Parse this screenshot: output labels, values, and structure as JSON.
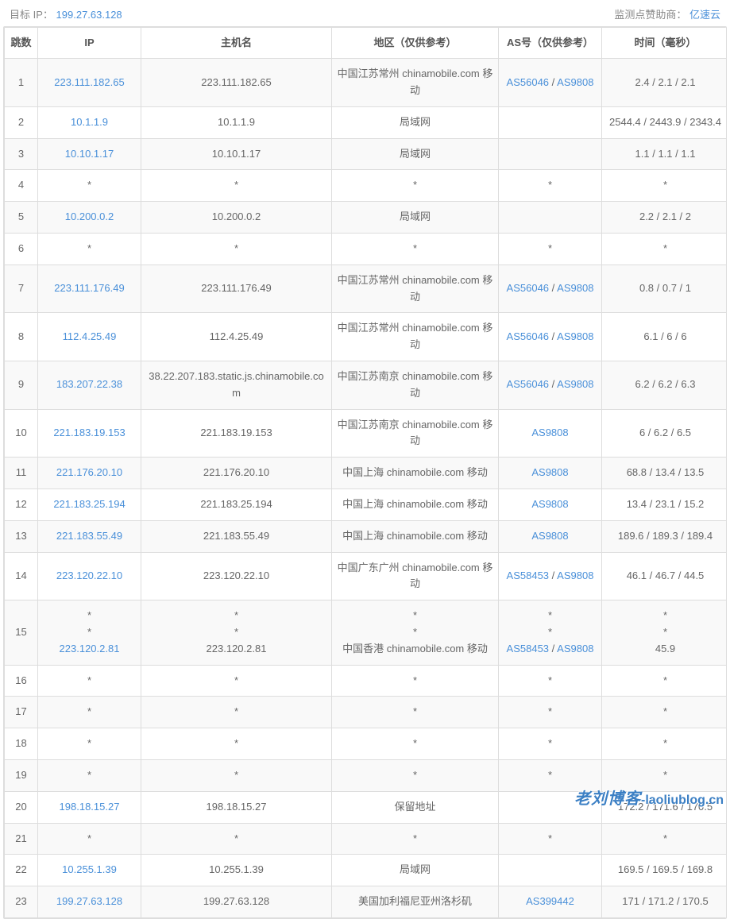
{
  "header": {
    "target_label": "目标 IP：",
    "target_ip": "199.27.63.128",
    "sponsor_label": "监测点赞助商：",
    "sponsor_name": "亿速云"
  },
  "columns": {
    "hop": "跳数",
    "ip": "IP",
    "host": "主机名",
    "region": "地区（仅供参考）",
    "as": "AS号（仅供参考）",
    "time": "时间（毫秒）"
  },
  "rows": [
    {
      "hop": "1",
      "ip": [
        {
          "text": "223.111.182.65",
          "link": true
        }
      ],
      "host": [
        {
          "text": "223.111.182.65"
        }
      ],
      "region": [
        {
          "text": "中国江苏常州 chinamobile.com 移动"
        }
      ],
      "as": [
        {
          "text": "AS56046",
          "link": true
        },
        {
          "text": " / "
        },
        {
          "text": "AS9808",
          "link": true
        }
      ],
      "time": [
        {
          "text": "2.4 / 2.1 / 2.1"
        }
      ]
    },
    {
      "hop": "2",
      "ip": [
        {
          "text": "10.1.1.9",
          "link": true
        }
      ],
      "host": [
        {
          "text": "10.1.1.9"
        }
      ],
      "region": [
        {
          "text": "局域网"
        }
      ],
      "as": [],
      "time": [
        {
          "text": "2544.4 / 2443.9 / 2343.4"
        }
      ]
    },
    {
      "hop": "3",
      "ip": [
        {
          "text": "10.10.1.17",
          "link": true
        }
      ],
      "host": [
        {
          "text": "10.10.1.17"
        }
      ],
      "region": [
        {
          "text": "局域网"
        }
      ],
      "as": [],
      "time": [
        {
          "text": "1.1 / 1.1 / 1.1"
        }
      ]
    },
    {
      "hop": "4",
      "ip": [
        {
          "text": "*"
        }
      ],
      "host": [
        {
          "text": "*"
        }
      ],
      "region": [
        {
          "text": "*"
        }
      ],
      "as": [
        {
          "text": "*"
        }
      ],
      "time": [
        {
          "text": "*"
        }
      ]
    },
    {
      "hop": "5",
      "ip": [
        {
          "text": "10.200.0.2",
          "link": true
        }
      ],
      "host": [
        {
          "text": "10.200.0.2"
        }
      ],
      "region": [
        {
          "text": "局域网"
        }
      ],
      "as": [],
      "time": [
        {
          "text": "2.2 / 2.1 / 2"
        }
      ]
    },
    {
      "hop": "6",
      "ip": [
        {
          "text": "*"
        }
      ],
      "host": [
        {
          "text": "*"
        }
      ],
      "region": [
        {
          "text": "*"
        }
      ],
      "as": [
        {
          "text": "*"
        }
      ],
      "time": [
        {
          "text": "*"
        }
      ]
    },
    {
      "hop": "7",
      "ip": [
        {
          "text": "223.111.176.49",
          "link": true
        }
      ],
      "host": [
        {
          "text": "223.111.176.49"
        }
      ],
      "region": [
        {
          "text": "中国江苏常州 chinamobile.com 移动"
        }
      ],
      "as": [
        {
          "text": "AS56046",
          "link": true
        },
        {
          "text": " / "
        },
        {
          "text": "AS9808",
          "link": true
        }
      ],
      "time": [
        {
          "text": "0.8 / 0.7 / 1"
        }
      ]
    },
    {
      "hop": "8",
      "ip": [
        {
          "text": "112.4.25.49",
          "link": true
        }
      ],
      "host": [
        {
          "text": "112.4.25.49"
        }
      ],
      "region": [
        {
          "text": "中国江苏常州 chinamobile.com 移动"
        }
      ],
      "as": [
        {
          "text": "AS56046",
          "link": true
        },
        {
          "text": " / "
        },
        {
          "text": "AS9808",
          "link": true
        }
      ],
      "time": [
        {
          "text": "6.1 / 6 / 6"
        }
      ]
    },
    {
      "hop": "9",
      "ip": [
        {
          "text": "183.207.22.38",
          "link": true
        }
      ],
      "host": [
        {
          "text": "38.22.207.183.static.js.chinamobile.com"
        }
      ],
      "region": [
        {
          "text": "中国江苏南京 chinamobile.com 移动"
        }
      ],
      "as": [
        {
          "text": "AS56046",
          "link": true
        },
        {
          "text": " / "
        },
        {
          "text": "AS9808",
          "link": true
        }
      ],
      "time": [
        {
          "text": "6.2 / 6.2 / 6.3"
        }
      ]
    },
    {
      "hop": "10",
      "ip": [
        {
          "text": "221.183.19.153",
          "link": true
        }
      ],
      "host": [
        {
          "text": "221.183.19.153"
        }
      ],
      "region": [
        {
          "text": "中国江苏南京 chinamobile.com 移动"
        }
      ],
      "as": [
        {
          "text": "AS9808",
          "link": true
        }
      ],
      "time": [
        {
          "text": "6 / 6.2 / 6.5"
        }
      ]
    },
    {
      "hop": "11",
      "ip": [
        {
          "text": "221.176.20.10",
          "link": true
        }
      ],
      "host": [
        {
          "text": "221.176.20.10"
        }
      ],
      "region": [
        {
          "text": "中国上海 chinamobile.com 移动"
        }
      ],
      "as": [
        {
          "text": "AS9808",
          "link": true
        }
      ],
      "time": [
        {
          "text": "68.8 / 13.4 / 13.5"
        }
      ]
    },
    {
      "hop": "12",
      "ip": [
        {
          "text": "221.183.25.194",
          "link": true
        }
      ],
      "host": [
        {
          "text": "221.183.25.194"
        }
      ],
      "region": [
        {
          "text": "中国上海 chinamobile.com 移动"
        }
      ],
      "as": [
        {
          "text": "AS9808",
          "link": true
        }
      ],
      "time": [
        {
          "text": "13.4 / 23.1 / 15.2"
        }
      ]
    },
    {
      "hop": "13",
      "ip": [
        {
          "text": "221.183.55.49",
          "link": true
        }
      ],
      "host": [
        {
          "text": "221.183.55.49"
        }
      ],
      "region": [
        {
          "text": "中国上海 chinamobile.com 移动"
        }
      ],
      "as": [
        {
          "text": "AS9808",
          "link": true
        }
      ],
      "time": [
        {
          "text": "189.6 / 189.3 / 189.4"
        }
      ]
    },
    {
      "hop": "14",
      "ip": [
        {
          "text": "223.120.22.10",
          "link": true
        }
      ],
      "host": [
        {
          "text": "223.120.22.10"
        }
      ],
      "region": [
        {
          "text": "中国广东广州 chinamobile.com 移动"
        }
      ],
      "as": [
        {
          "text": "AS58453",
          "link": true
        },
        {
          "text": " / "
        },
        {
          "text": "AS9808",
          "link": true
        }
      ],
      "time": [
        {
          "text": "46.1 / 46.7 / 44.5"
        }
      ]
    },
    {
      "hop": "15",
      "ip": [
        {
          "text": "*",
          "block": true
        },
        {
          "text": "*",
          "block": true
        },
        {
          "text": "223.120.2.81",
          "link": true,
          "block": true
        }
      ],
      "host": [
        {
          "text": "*",
          "block": true
        },
        {
          "text": "*",
          "block": true
        },
        {
          "text": "223.120.2.81",
          "block": true
        }
      ],
      "region": [
        {
          "text": "*",
          "block": true
        },
        {
          "text": "*",
          "block": true
        },
        {
          "text": "中国香港 chinamobile.com 移动",
          "block": true
        }
      ],
      "as": [
        {
          "text": "*",
          "block": true
        },
        {
          "text": "*",
          "block": true
        },
        {
          "html": true,
          "parts": [
            {
              "text": "AS58453",
              "link": true
            },
            {
              "text": " / "
            },
            {
              "text": "AS9808",
              "link": true
            }
          ],
          "block": true
        }
      ],
      "time": [
        {
          "text": "*",
          "block": true
        },
        {
          "text": "*",
          "block": true
        },
        {
          "text": "45.9",
          "block": true
        }
      ]
    },
    {
      "hop": "16",
      "ip": [
        {
          "text": "*"
        }
      ],
      "host": [
        {
          "text": "*"
        }
      ],
      "region": [
        {
          "text": "*"
        }
      ],
      "as": [
        {
          "text": "*"
        }
      ],
      "time": [
        {
          "text": "*"
        }
      ]
    },
    {
      "hop": "17",
      "ip": [
        {
          "text": "*"
        }
      ],
      "host": [
        {
          "text": "*"
        }
      ],
      "region": [
        {
          "text": "*"
        }
      ],
      "as": [
        {
          "text": "*"
        }
      ],
      "time": [
        {
          "text": "*"
        }
      ]
    },
    {
      "hop": "18",
      "ip": [
        {
          "text": "*"
        }
      ],
      "host": [
        {
          "text": "*"
        }
      ],
      "region": [
        {
          "text": "*"
        }
      ],
      "as": [
        {
          "text": "*"
        }
      ],
      "time": [
        {
          "text": "*"
        }
      ]
    },
    {
      "hop": "19",
      "ip": [
        {
          "text": "*"
        }
      ],
      "host": [
        {
          "text": "*"
        }
      ],
      "region": [
        {
          "text": "*"
        }
      ],
      "as": [
        {
          "text": "*"
        }
      ],
      "time": [
        {
          "text": "*"
        }
      ]
    },
    {
      "hop": "20",
      "ip": [
        {
          "text": "198.18.15.27",
          "link": true
        }
      ],
      "host": [
        {
          "text": "198.18.15.27"
        }
      ],
      "region": [
        {
          "text": "保留地址"
        }
      ],
      "as": [],
      "time": [
        {
          "text": "172.2 / 171.6 / 170.5"
        }
      ]
    },
    {
      "hop": "21",
      "ip": [
        {
          "text": "*"
        }
      ],
      "host": [
        {
          "text": "*"
        }
      ],
      "region": [
        {
          "text": "*"
        }
      ],
      "as": [
        {
          "text": "*"
        }
      ],
      "time": [
        {
          "text": "*"
        }
      ]
    },
    {
      "hop": "22",
      "ip": [
        {
          "text": "10.255.1.39",
          "link": true
        }
      ],
      "host": [
        {
          "text": "10.255.1.39"
        }
      ],
      "region": [
        {
          "text": "局域网"
        }
      ],
      "as": [],
      "time": [
        {
          "text": "169.5 / 169.5 / 169.8"
        }
      ]
    },
    {
      "hop": "23",
      "ip": [
        {
          "text": "199.27.63.128",
          "link": true
        }
      ],
      "host": [
        {
          "text": "199.27.63.128"
        }
      ],
      "region": [
        {
          "text": "美国加利福尼亚州洛杉矶"
        }
      ],
      "as": [
        {
          "text": "AS399442",
          "link": true
        }
      ],
      "time": [
        {
          "text": "171 / 171.2 / 170.5"
        }
      ]
    }
  ],
  "watermark": {
    "line1": "老刘博客",
    "line2": "-laoliublog.cn"
  }
}
